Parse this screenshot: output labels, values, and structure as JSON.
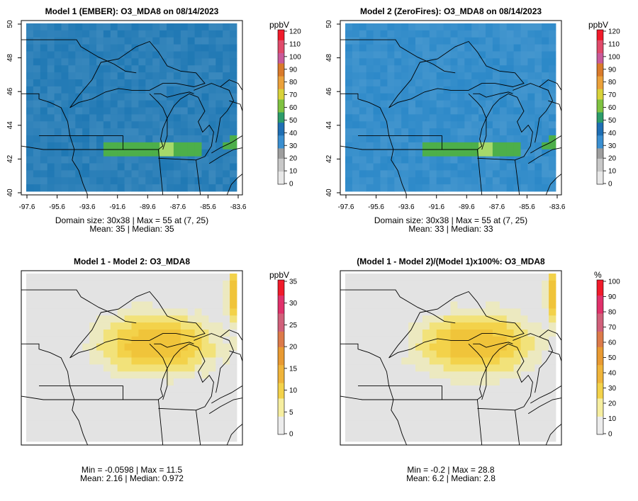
{
  "panels": [
    {
      "title": "Model 1 (EMBER): O3_MDA8 on 08/14/2023",
      "stats1": "Domain size: 30x38 | Max = 55 at (7, 25)",
      "stats2": "Mean: 35 |  Median: 35",
      "unit": "ppbV",
      "colorbar_ticks": [
        "0",
        "10",
        "20",
        "30",
        "40",
        "50",
        "60",
        "70",
        "80",
        "90",
        "100",
        "110",
        "120"
      ],
      "lat_ticks": [
        "40",
        "42",
        "44",
        "46",
        "48",
        "50"
      ],
      "lon_ticks": [
        "-97.6",
        "-95.6",
        "-93.6",
        "-91.6",
        "-89.6",
        "-87.6",
        "-85.6",
        "-83.6"
      ],
      "colors": {
        "background": "#1f78b4",
        "high": "#4daf4a",
        "max": "#a6d96a"
      }
    },
    {
      "title": "Model 2 (ZeroFires): O3_MDA8 on 08/14/2023",
      "stats1": "Domain size: 30x38 | Max = 55 at (7, 25)",
      "stats2": "Mean: 33 |  Median: 33",
      "unit": "ppbV",
      "colorbar_ticks": [
        "0",
        "10",
        "20",
        "30",
        "40",
        "50",
        "60",
        "70",
        "80",
        "90",
        "100",
        "110",
        "120"
      ],
      "lat_ticks": [
        "40",
        "42",
        "44",
        "46",
        "48",
        "50"
      ],
      "lon_ticks": [
        "-97.6",
        "-95.6",
        "-93.6",
        "-91.6",
        "-89.6",
        "-87.6",
        "-85.6",
        "-83.6"
      ],
      "colors": {
        "background": "#2b88c8",
        "high": "#4daf4a",
        "max": "#a6d96a"
      }
    },
    {
      "title": "Model 1 - Model 2: O3_MDA8",
      "stats1": "Min = -0.0598 | Max = 11.5",
      "stats2": "Mean: 2.16 |  Median: 0.972",
      "unit": "ppbV",
      "colorbar_ticks": [
        "0",
        "5",
        "10",
        "15",
        "20",
        "25",
        "30",
        "35"
      ],
      "colors": {
        "background": "#e3e3e3",
        "high": "#f3d24a",
        "max": "#f0c43a"
      }
    },
    {
      "title": "(Model 1 - Model 2)/(Model 1)x100%: O3_MDA8",
      "stats1": "Min = -0.2 | Max = 28.8",
      "stats2": "Mean: 6.2 |  Median: 2.8",
      "unit": "%",
      "colorbar_ticks": [
        "0",
        "10",
        "20",
        "30",
        "40",
        "50",
        "60",
        "70",
        "80",
        "90",
        "100"
      ],
      "colors": {
        "background": "#e3e3e3",
        "high": "#f3d24a",
        "max": "#f0c43a"
      }
    }
  ]
}
